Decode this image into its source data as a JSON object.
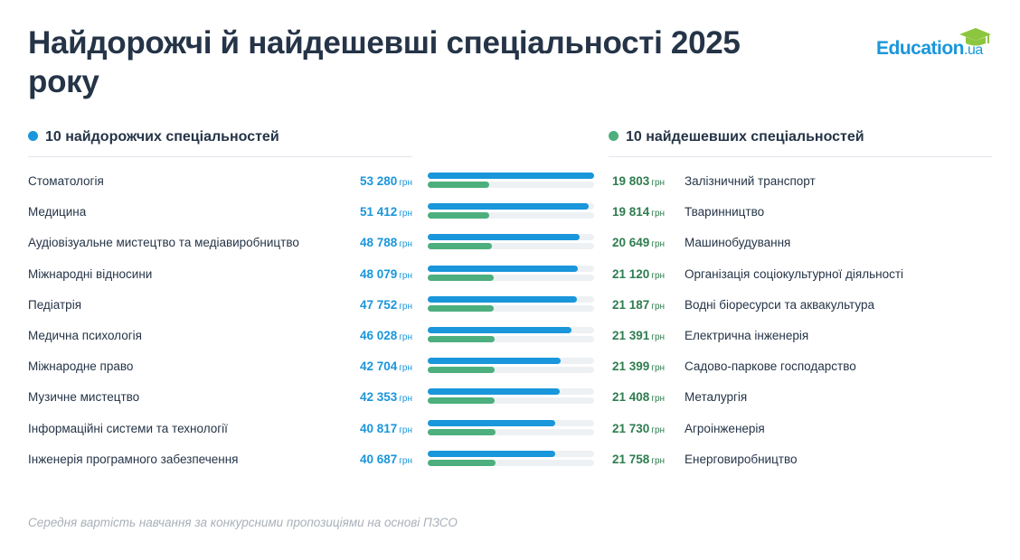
{
  "title": "Найдорожчі й найдешевші спеціальності 2025 року",
  "logo": {
    "text": "Education",
    "suffix": ".ua"
  },
  "footnote": "Середня вартість навчання за конкурсними пропозиціями на основі ПЗСО",
  "colors": {
    "expensive": "#1a96db",
    "cheap": "#4caf7d",
    "title": "#253447"
  },
  "chart_data": {
    "type": "bar",
    "unit": "грн",
    "series": [
      {
        "name": "10 найдорожчих спеціальностей",
        "categories": [
          "Стоматологія",
          "Медицина",
          "Аудіовізуальне мистецтво та медіавиробництво",
          "Міжнародні відносини",
          "Педіатрія",
          "Медична психологія",
          "Міжнародне право",
          "Музичне мистецтво",
          "Інформаційні системи та технології",
          "Інженерія програмного забезпечення"
        ],
        "values": [
          53280,
          51412,
          48788,
          48079,
          47752,
          46028,
          42704,
          42353,
          40817,
          40687
        ],
        "labels": [
          "53 280",
          "51 412",
          "48 788",
          "48 079",
          "47 752",
          "46 028",
          "42 704",
          "42 353",
          "40 817",
          "40 687"
        ]
      },
      {
        "name": "10 найдешевших спеціальностей",
        "categories": [
          "Залізничний транспорт",
          "Тваринництво",
          "Машинобудування",
          "Організація соціокультурної діяльності",
          "Водні біоресурси та аквакультура",
          "Електрична інженерія",
          "Садово-паркове господарство",
          "Металургія",
          "Агроінженерія",
          "Енерговиробництво"
        ],
        "values": [
          19803,
          19814,
          20649,
          21120,
          21187,
          21391,
          21399,
          21408,
          21730,
          21758
        ],
        "labels": [
          "19 803",
          "19 814",
          "20 649",
          "21 120",
          "21 187",
          "21 391",
          "21 399",
          "21 408",
          "21 730",
          "21 758"
        ]
      }
    ],
    "xlim": [
      0,
      53280
    ]
  }
}
